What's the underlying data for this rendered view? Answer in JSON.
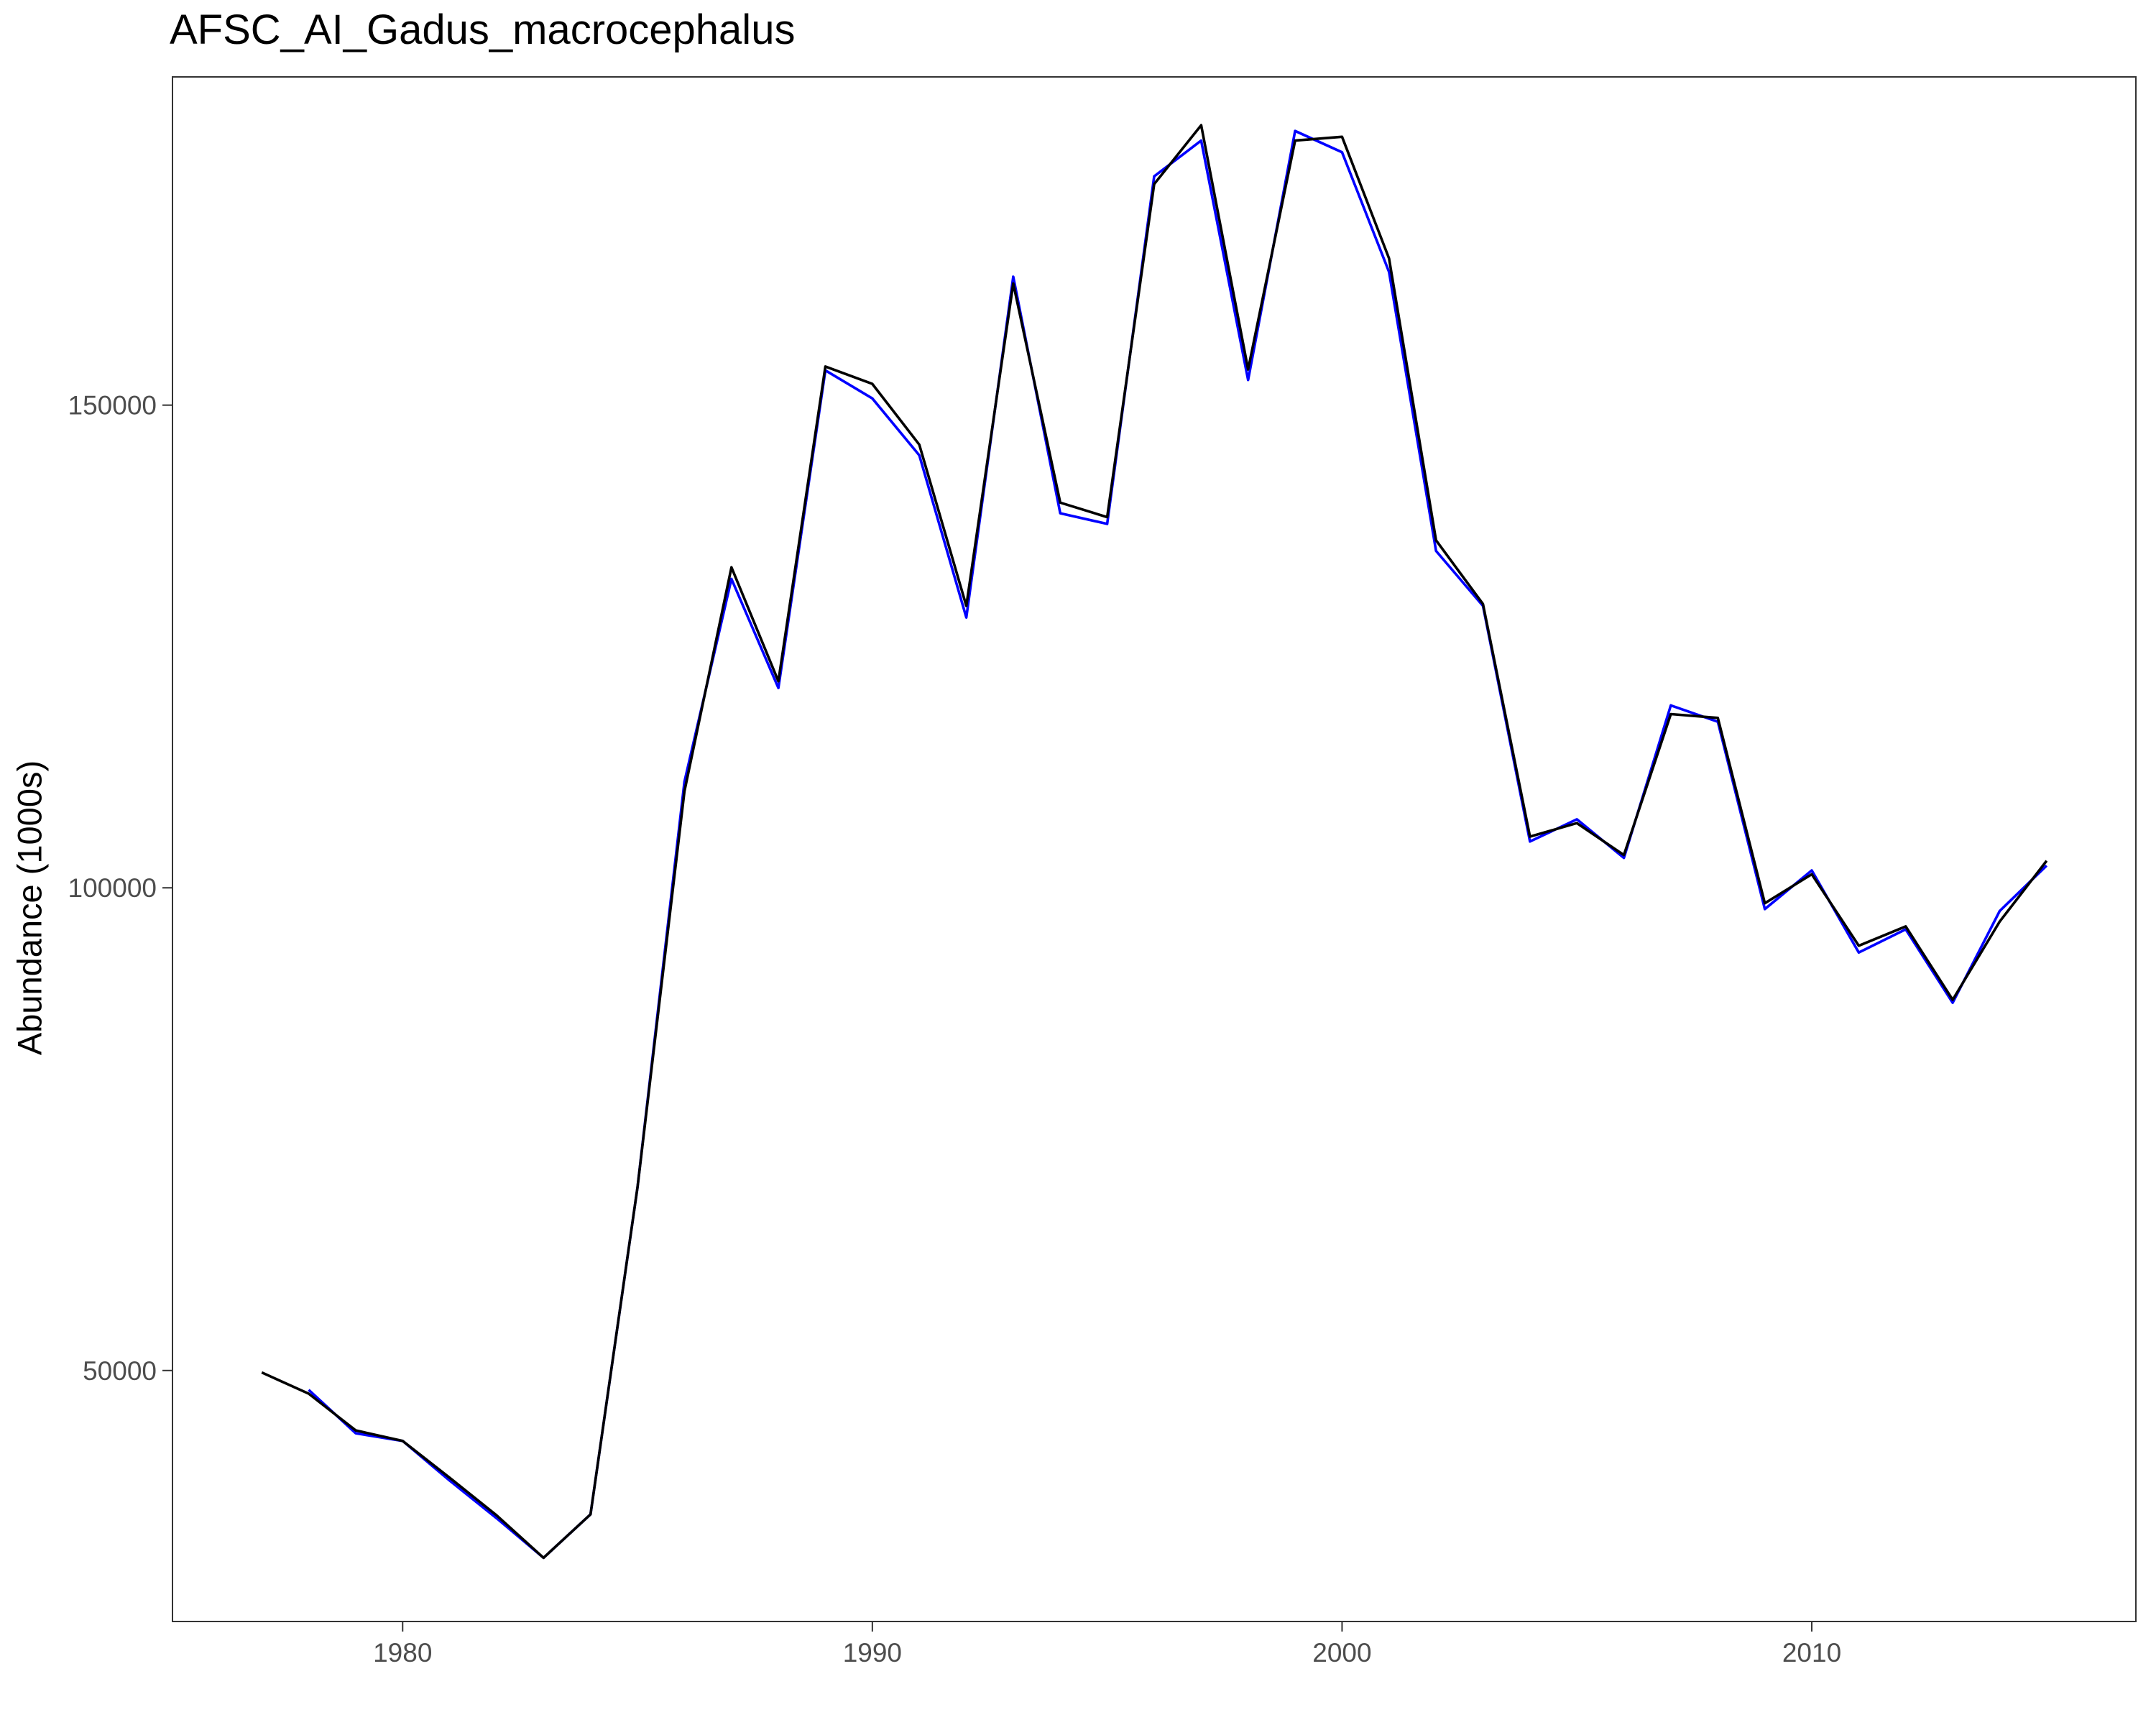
{
  "chart_data": {
    "type": "line",
    "title": "AFSC_AI_Gadus_macrocephalus",
    "xlabel": "",
    "ylabel": "Abundance (1000s)",
    "xlim": [
      1975.1,
      2016.9
    ],
    "ylim": [
      24000,
      184000
    ],
    "x_ticks": [
      1980,
      1990,
      2000,
      2010
    ],
    "y_ticks": [
      50000,
      100000,
      150000
    ],
    "grid": false,
    "legend": "none",
    "series": [
      {
        "color": "#0000ff",
        "x": [
          1978,
          1979,
          1980,
          1981,
          1982,
          1983,
          1984,
          1985,
          1986,
          1987,
          1988,
          1989,
          1990,
          1991,
          1992,
          1993,
          1994,
          1995,
          1996,
          1997,
          1998,
          1999,
          2000,
          2001,
          2002,
          2003,
          2004,
          2005,
          2006,
          2007,
          2008,
          2009,
          2010,
          2011,
          2012,
          2013,
          2014,
          2015
        ],
        "y": [
          48000,
          43500,
          42700,
          38600,
          34700,
          30600,
          35100,
          69000,
          111000,
          132000,
          120700,
          153600,
          150700,
          144800,
          128000,
          163300,
          138800,
          137700,
          173700,
          177400,
          152600,
          178400,
          176200,
          163800,
          134900,
          129200,
          104800,
          107100,
          103100,
          118900,
          117200,
          97800,
          101800,
          93300,
          95700,
          88100,
          97600,
          102300
        ]
      },
      {
        "color": "#000000",
        "x": [
          1977,
          1978,
          1979,
          1980,
          1981,
          1982,
          1983,
          1984,
          1985,
          1986,
          1987,
          1988,
          1989,
          1990,
          1991,
          1992,
          1993,
          1994,
          1995,
          1996,
          1997,
          1998,
          1999,
          2000,
          2001,
          2002,
          2003,
          2004,
          2005,
          2006,
          2007,
          2008,
          2009,
          2010,
          2011,
          2012,
          2013,
          2014,
          2015
        ],
        "y": [
          49800,
          47600,
          43800,
          42700,
          38900,
          35000,
          30600,
          35100,
          69000,
          110000,
          133200,
          121400,
          154000,
          152200,
          145900,
          129200,
          162600,
          139900,
          138400,
          172900,
          179000,
          153700,
          177400,
          177800,
          165200,
          136000,
          129400,
          105300,
          106700,
          103400,
          118000,
          117600,
          98400,
          101400,
          94000,
          96000,
          88400,
          96500,
          102800
        ]
      }
    ]
  }
}
